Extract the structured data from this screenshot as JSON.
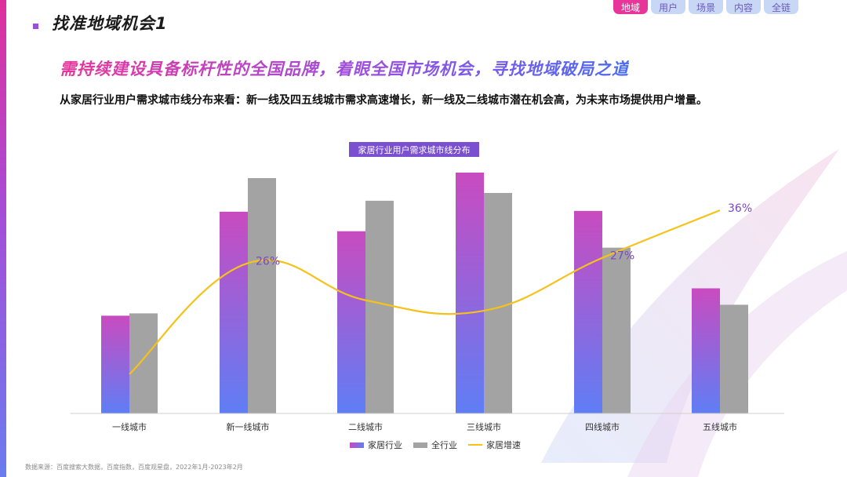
{
  "section_title": "找准地域机会1",
  "nav": {
    "tabs": [
      {
        "label": "地域",
        "active": true
      },
      {
        "label": "用户",
        "active": false
      },
      {
        "label": "场景",
        "active": false
      },
      {
        "label": "内容",
        "active": false
      },
      {
        "label": "全链",
        "active": false
      }
    ]
  },
  "headline": "需持续建设具备标杆性的全国品牌，着眼全国市场机会，寻找地域破局之道",
  "subtitle": "从家居行业用户需求城市线分布来看：新一线及四五线城市需求高速增长，新一线及二线城市潜在机会高，为未来市场提供用户增量。",
  "source": "数据来源：百度搜索大数据，百度指数，百度观星盘，2022年1月-2023年2月",
  "colors": {
    "bar_home_top": "#c94bc0",
    "bar_home_bottom": "#5f7ef5",
    "bar_all": "#a3a3a3",
    "line_growth": "#f5c21a",
    "label_purple": "#7a48c0"
  },
  "chart_data": {
    "type": "bar",
    "title": "家居行业用户需求城市线分布",
    "categories": [
      "一线城市",
      "新一线城市",
      "二线城市",
      "三线城市",
      "四线城市",
      "五线城市"
    ],
    "series": [
      {
        "name": "家居行业",
        "type": "bar",
        "values": [
          12.5,
          25.8,
          23.3,
          30.8,
          25.9,
          16.0
        ]
      },
      {
        "name": "全行业",
        "type": "bar",
        "values": [
          12.8,
          30.1,
          27.2,
          28.2,
          21.2,
          13.9
        ]
      },
      {
        "name": "家居增速",
        "type": "line",
        "values": [
          5,
          26,
          19,
          17,
          27,
          36
        ]
      }
    ],
    "data_labels": [
      {
        "category": "新一线城市",
        "text": "26%"
      },
      {
        "category": "四线城市",
        "text": "27%"
      },
      {
        "category": "五线城市",
        "text": "36%"
      }
    ],
    "legend_position": "bottom-center",
    "grid": false
  }
}
